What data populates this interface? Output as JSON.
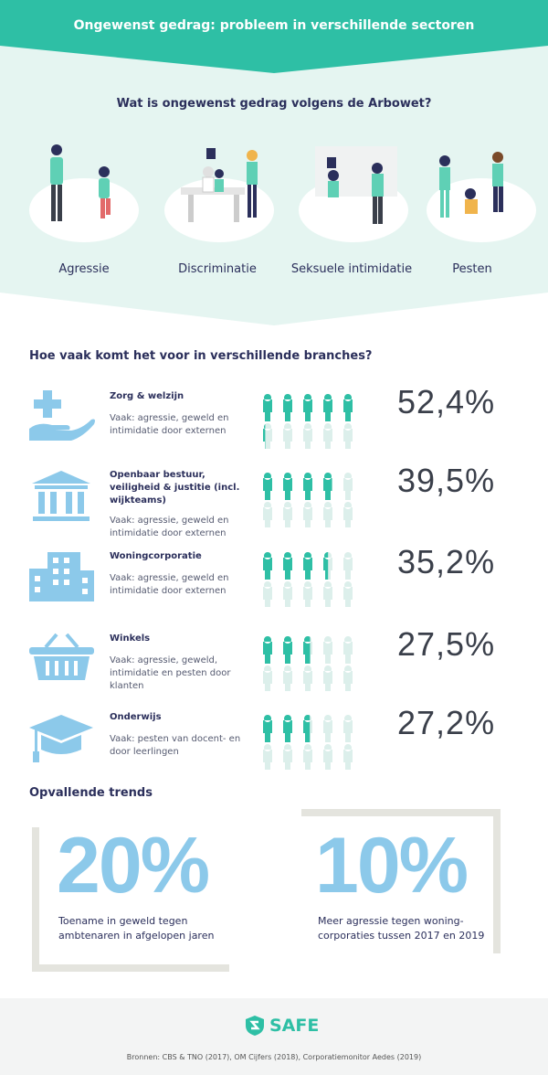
{
  "title": "Ongewenst gedrag: probleem in verschillende sectoren",
  "colors": {
    "header_teal": "#2ebfa5",
    "mint_bg": "#e5f5f1",
    "navy": "#2b2f5b",
    "icon_blue": "#8cc9ea",
    "figure_filled": "#2ebfa5",
    "figure_empty": "#dcefeb"
  },
  "arbowet": {
    "heading": "Wat is ongewenst gedrag volgens de Arbowet?",
    "categories": [
      {
        "label": "Agressie"
      },
      {
        "label": "Discriminatie"
      },
      {
        "label": "Seksuele intimidatie"
      },
      {
        "label": "Pesten"
      }
    ]
  },
  "branches": {
    "heading": "Hoe vaak komt het voor in verschillende branches?",
    "total_figures": 10,
    "items": [
      {
        "name": "Zorg & welzijn",
        "desc": "Vaak: agressie, geweld en intimidatie door externen",
        "percent_label": "52,4%",
        "percent": 52.4,
        "icon": "hand-plus-icon"
      },
      {
        "name": "Openbaar bestuur, veiligheid & justitie (incl. wijkteams)",
        "desc": "Vaak: agressie, geweld en intimidatie door externen",
        "percent_label": "39,5%",
        "percent": 39.5,
        "icon": "government-building-icon"
      },
      {
        "name": "Woningcorporatie",
        "desc": "Vaak: agressie, geweld en intimidatie door externen",
        "percent_label": "35,2%",
        "percent": 35.2,
        "icon": "apartment-building-icon"
      },
      {
        "name": "Winkels",
        "desc": "Vaak: agressie, geweld, intimidatie en pesten door klanten",
        "percent_label": "27,5%",
        "percent": 27.5,
        "icon": "shopping-basket-icon"
      },
      {
        "name": "Onderwijs",
        "desc": "Vaak: pesten van docent- en door leerlingen",
        "percent_label": "27,2%",
        "percent": 27.2,
        "icon": "graduation-cap-icon"
      }
    ]
  },
  "trends": {
    "heading": "Opvallende trends",
    "items": [
      {
        "value": "20%",
        "text": "Toename in geweld tegen ambtenaren in afgelopen jaren"
      },
      {
        "value": "10%",
        "text": "Meer agressie tegen woning-corporaties tussen 2017 en 2019"
      }
    ]
  },
  "footer": {
    "logo": "SAFE",
    "sources": "Bronnen: CBS & TNO (2017), OM Cijfers (2018), Corporatiemonitor Aedes (2019)"
  }
}
